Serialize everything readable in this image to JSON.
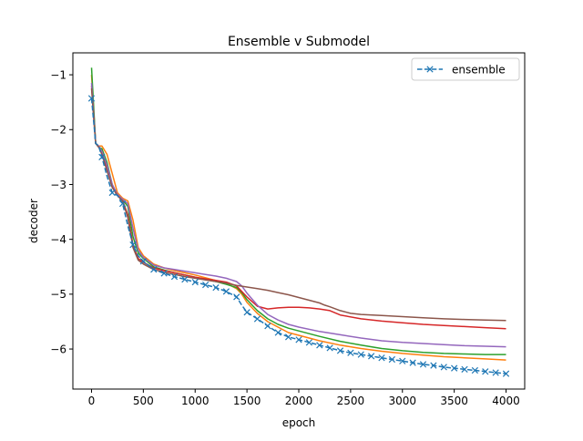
{
  "chart_data": {
    "type": "line",
    "title": "Ensemble v Submodel",
    "xlabel": "epoch",
    "ylabel": "decoder",
    "xlim": [
      -180,
      4180
    ],
    "ylim": [
      -6.73,
      -0.6
    ],
    "xticks": [
      0,
      500,
      1000,
      1500,
      2000,
      2500,
      3000,
      3500,
      4000
    ],
    "yticks": [
      -1,
      -2,
      -3,
      -4,
      -5,
      -6
    ],
    "grid": false,
    "legend": {
      "placement": "top-right"
    },
    "series": [
      {
        "name": "ensemble",
        "color": "#1f77b4",
        "linestyle": "dashed",
        "marker": "x",
        "x": [
          0,
          40,
          70,
          100,
          150,
          200,
          250,
          300,
          350,
          400,
          450,
          500,
          600,
          700,
          800,
          900,
          1000,
          1100,
          1200,
          1300,
          1400,
          1450,
          1500,
          1600,
          1700,
          1800,
          1900,
          2000,
          2100,
          2200,
          2300,
          2400,
          2500,
          2600,
          2700,
          2800,
          2900,
          3000,
          3100,
          3200,
          3300,
          3400,
          3500,
          3600,
          3700,
          3800,
          3900,
          4000
        ],
        "y": [
          -1.43,
          -2.25,
          -2.3,
          -2.5,
          -2.85,
          -3.15,
          -3.2,
          -3.35,
          -3.75,
          -4.1,
          -4.3,
          -4.4,
          -4.55,
          -4.62,
          -4.68,
          -4.73,
          -4.78,
          -4.83,
          -4.88,
          -4.95,
          -5.05,
          -5.2,
          -5.33,
          -5.45,
          -5.58,
          -5.7,
          -5.78,
          -5.83,
          -5.88,
          -5.93,
          -5.98,
          -6.03,
          -6.07,
          -6.1,
          -6.13,
          -6.16,
          -6.19,
          -6.22,
          -6.25,
          -6.28,
          -6.3,
          -6.33,
          -6.35,
          -6.37,
          -6.39,
          -6.41,
          -6.43,
          -6.45
        ],
        "marker_x": [
          0,
          100,
          200,
          300,
          400,
          500,
          600,
          700,
          800,
          900,
          1000,
          1100,
          1200,
          1300,
          1400,
          1500,
          1600,
          1700,
          1800,
          1900,
          2000,
          2100,
          2200,
          2300,
          2400,
          2500,
          2600,
          2700,
          2800,
          2900,
          3000,
          3100,
          3200,
          3300,
          3400,
          3500,
          3600,
          3700,
          3800,
          3900,
          4000
        ]
      },
      {
        "color": "#ff7f0e",
        "x": [
          0,
          40,
          70,
          100,
          150,
          200,
          250,
          300,
          350,
          400,
          450,
          500,
          600,
          700,
          800,
          900,
          1000,
          1100,
          1200,
          1300,
          1400,
          1450,
          1500,
          1600,
          1700,
          1800,
          1900,
          2000,
          2200,
          2400,
          2600,
          2800,
          3000,
          3200,
          3400,
          3600,
          3800,
          4000
        ],
        "y": [
          -1.0,
          -2.25,
          -2.3,
          -2.3,
          -2.45,
          -2.8,
          -3.15,
          -3.25,
          -3.3,
          -3.65,
          -4.15,
          -4.3,
          -4.45,
          -4.52,
          -4.57,
          -4.61,
          -4.65,
          -4.7,
          -4.75,
          -4.8,
          -4.9,
          -5.0,
          -5.15,
          -5.35,
          -5.5,
          -5.6,
          -5.7,
          -5.75,
          -5.85,
          -5.93,
          -5.99,
          -6.04,
          -6.08,
          -6.11,
          -6.14,
          -6.16,
          -6.18,
          -6.2
        ]
      },
      {
        "color": "#2ca02c",
        "x": [
          0,
          40,
          70,
          100,
          150,
          200,
          250,
          300,
          350,
          400,
          450,
          500,
          600,
          700,
          800,
          900,
          1000,
          1100,
          1200,
          1300,
          1400,
          1450,
          1500,
          1600,
          1700,
          1800,
          1900,
          2000,
          2200,
          2400,
          2600,
          2800,
          3000,
          3200,
          3400,
          3600,
          3800,
          4000
        ],
        "y": [
          -0.87,
          -2.25,
          -2.32,
          -2.35,
          -2.6,
          -3.0,
          -3.2,
          -3.28,
          -3.4,
          -3.95,
          -4.25,
          -4.35,
          -4.5,
          -4.56,
          -4.61,
          -4.65,
          -4.69,
          -4.73,
          -4.77,
          -4.82,
          -4.88,
          -4.97,
          -5.1,
          -5.3,
          -5.45,
          -5.55,
          -5.62,
          -5.67,
          -5.77,
          -5.86,
          -5.93,
          -5.99,
          -6.03,
          -6.06,
          -6.08,
          -6.09,
          -6.1,
          -6.1
        ]
      },
      {
        "color": "#d62728",
        "x": [
          0,
          40,
          70,
          100,
          150,
          200,
          250,
          300,
          350,
          400,
          450,
          500,
          600,
          700,
          800,
          900,
          1000,
          1100,
          1200,
          1300,
          1400,
          1500,
          1600,
          1700,
          1800,
          1900,
          2000,
          2100,
          2200,
          2300,
          2400,
          2600,
          2800,
          3000,
          3200,
          3400,
          3600,
          3800,
          4000
        ],
        "y": [
          -1.2,
          -2.25,
          -2.32,
          -2.4,
          -2.7,
          -3.05,
          -3.2,
          -3.3,
          -3.55,
          -4.1,
          -4.35,
          -4.42,
          -4.52,
          -4.57,
          -4.61,
          -4.65,
          -4.69,
          -4.72,
          -4.75,
          -4.78,
          -4.85,
          -5.05,
          -5.22,
          -5.27,
          -5.25,
          -5.24,
          -5.24,
          -5.25,
          -5.27,
          -5.3,
          -5.38,
          -5.45,
          -5.49,
          -5.52,
          -5.55,
          -5.57,
          -5.59,
          -5.61,
          -5.63
        ]
      },
      {
        "color": "#9467bd",
        "x": [
          0,
          40,
          70,
          100,
          150,
          200,
          250,
          300,
          350,
          400,
          450,
          500,
          600,
          700,
          800,
          900,
          1000,
          1100,
          1200,
          1300,
          1400,
          1450,
          1500,
          1600,
          1700,
          1800,
          1900,
          2000,
          2200,
          2400,
          2600,
          2800,
          3000,
          3200,
          3400,
          3600,
          3800,
          4000
        ],
        "y": [
          -1.15,
          -2.25,
          -2.3,
          -2.4,
          -2.65,
          -3.0,
          -3.18,
          -3.27,
          -3.35,
          -3.8,
          -4.2,
          -4.33,
          -4.47,
          -4.52,
          -4.55,
          -4.58,
          -4.61,
          -4.64,
          -4.67,
          -4.71,
          -4.77,
          -4.85,
          -4.98,
          -5.2,
          -5.37,
          -5.47,
          -5.55,
          -5.6,
          -5.68,
          -5.74,
          -5.8,
          -5.85,
          -5.88,
          -5.9,
          -5.92,
          -5.94,
          -5.95,
          -5.96
        ]
      },
      {
        "color": "#8c564b",
        "x": [
          0,
          40,
          70,
          100,
          150,
          200,
          250,
          300,
          350,
          400,
          450,
          500,
          600,
          700,
          800,
          900,
          1000,
          1100,
          1200,
          1300,
          1400,
          1500,
          1600,
          1700,
          1800,
          1900,
          2000,
          2100,
          2200,
          2250,
          2300,
          2400,
          2500,
          2600,
          2800,
          3000,
          3200,
          3400,
          3600,
          3800,
          4000
        ],
        "y": [
          -1.25,
          -2.25,
          -2.32,
          -2.45,
          -2.75,
          -3.05,
          -3.2,
          -3.3,
          -3.6,
          -4.15,
          -4.38,
          -4.45,
          -4.55,
          -4.6,
          -4.64,
          -4.68,
          -4.71,
          -4.74,
          -4.77,
          -4.8,
          -4.84,
          -4.87,
          -4.9,
          -4.93,
          -4.97,
          -5.01,
          -5.06,
          -5.11,
          -5.16,
          -5.2,
          -5.23,
          -5.3,
          -5.35,
          -5.37,
          -5.39,
          -5.41,
          -5.43,
          -5.45,
          -5.46,
          -5.47,
          -5.48
        ]
      }
    ]
  }
}
